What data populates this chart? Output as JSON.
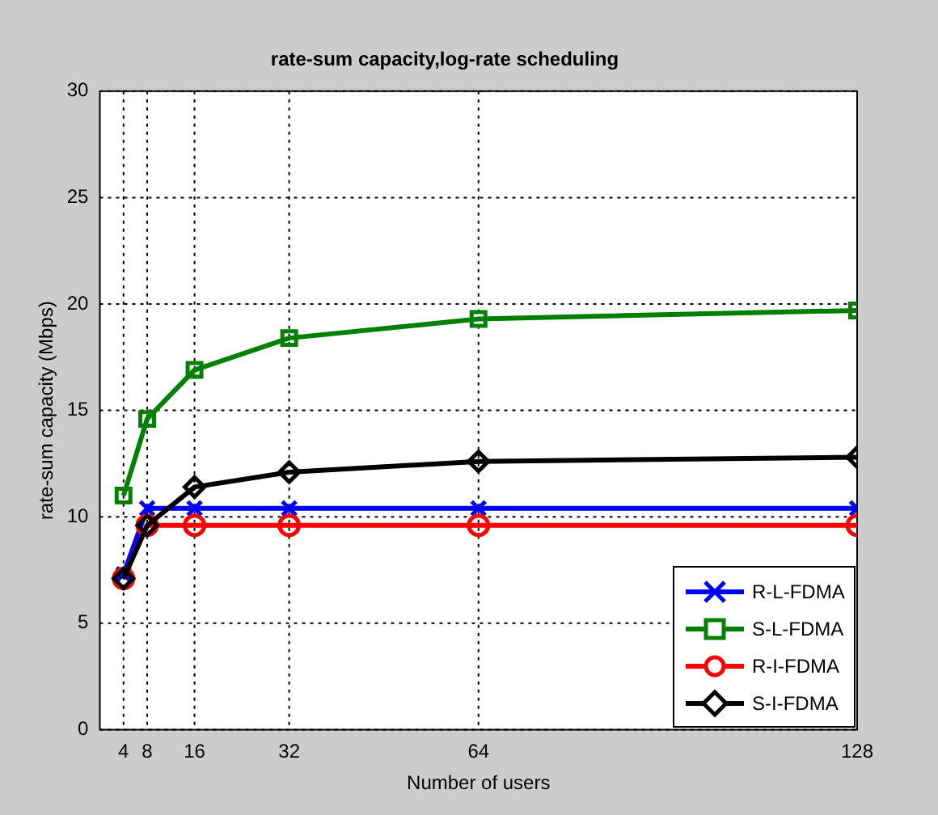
{
  "chart_data": {
    "type": "line",
    "title": "rate-sum capacity,log-rate scheduling",
    "xlabel": "Number of users",
    "ylabel": "rate-sum capacity (Mbps)",
    "x": [
      4,
      8,
      16,
      32,
      64,
      128
    ],
    "xlim": [
      0,
      128
    ],
    "xticks": [
      4,
      8,
      16,
      32,
      64,
      128
    ],
    "ylim": [
      0,
      30
    ],
    "yticks": [
      0,
      5,
      10,
      15,
      20,
      25,
      30
    ],
    "grid": true,
    "legend": "bottom right",
    "line_style": "solid",
    "series": [
      {
        "name": "R-L-FDMA",
        "color": "#0000ff",
        "marker": "cross",
        "values": [
          7.3,
          10.4,
          10.4,
          10.4,
          10.4,
          10.4
        ]
      },
      {
        "name": "S-L-FDMA",
        "color": "#008000",
        "marker": "square",
        "values": [
          11.0,
          14.6,
          16.9,
          18.4,
          19.3,
          19.7
        ]
      },
      {
        "name": "R-I-FDMA",
        "color": "#ff0000",
        "marker": "circle",
        "values": [
          7.1,
          9.6,
          9.6,
          9.6,
          9.6,
          9.6
        ]
      },
      {
        "name": "S-I-FDMA",
        "color": "#000000",
        "marker": "diamond",
        "values": [
          7.1,
          9.6,
          11.4,
          12.1,
          12.6,
          12.8
        ]
      }
    ]
  }
}
